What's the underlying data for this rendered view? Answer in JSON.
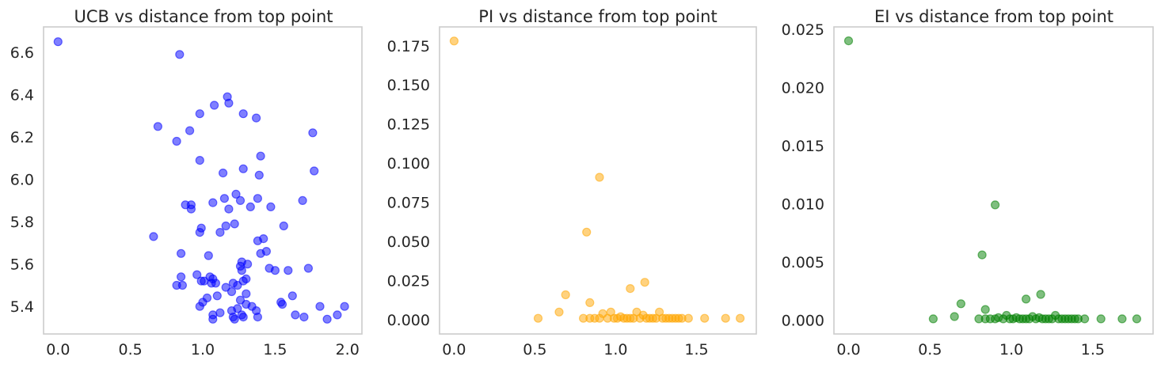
{
  "chart_data": [
    {
      "type": "scatter",
      "title": "UCB vs distance from top point",
      "xlabel": "",
      "ylabel": "",
      "xlim": [
        -0.1,
        2.1
      ],
      "ylim": [
        5.27,
        6.72
      ],
      "xticks": [
        0.0,
        0.5,
        1.0,
        1.5,
        2.0
      ],
      "xtick_labels": [
        "0.0",
        "0.5",
        "1.0",
        "1.5",
        "2.0"
      ],
      "yticks": [
        5.4,
        5.6,
        5.8,
        6.0,
        6.2,
        6.4,
        6.6
      ],
      "ytick_labels": [
        "5.4",
        "5.6",
        "5.8",
        "6.0",
        "6.2",
        "6.4",
        "6.6"
      ],
      "grid": false,
      "color": "#0000ff",
      "points": [
        [
          0.0,
          6.65
        ],
        [
          0.84,
          6.59
        ],
        [
          0.66,
          5.73
        ],
        [
          0.69,
          6.25
        ],
        [
          0.82,
          6.18
        ],
        [
          0.91,
          6.23
        ],
        [
          0.98,
          6.31
        ],
        [
          1.08,
          6.35
        ],
        [
          1.17,
          6.39
        ],
        [
          1.18,
          6.36
        ],
        [
          1.28,
          6.31
        ],
        [
          1.37,
          6.29
        ],
        [
          1.76,
          6.22
        ],
        [
          1.77,
          6.04
        ],
        [
          0.98,
          6.09
        ],
        [
          1.4,
          6.11
        ],
        [
          1.14,
          6.03
        ],
        [
          1.28,
          6.05
        ],
        [
          1.39,
          6.02
        ],
        [
          1.23,
          5.93
        ],
        [
          1.15,
          5.91
        ],
        [
          1.26,
          5.9
        ],
        [
          1.38,
          5.91
        ],
        [
          1.69,
          5.9
        ],
        [
          1.07,
          5.89
        ],
        [
          0.88,
          5.88
        ],
        [
          0.92,
          5.88
        ],
        [
          0.92,
          5.86
        ],
        [
          1.18,
          5.86
        ],
        [
          1.33,
          5.87
        ],
        [
          1.47,
          5.87
        ],
        [
          0.99,
          5.77
        ],
        [
          0.98,
          5.75
        ],
        [
          1.16,
          5.78
        ],
        [
          1.22,
          5.79
        ],
        [
          1.12,
          5.75
        ],
        [
          1.56,
          5.78
        ],
        [
          1.38,
          5.71
        ],
        [
          1.42,
          5.72
        ],
        [
          1.4,
          5.65
        ],
        [
          1.44,
          5.66
        ],
        [
          0.85,
          5.65
        ],
        [
          1.04,
          5.64
        ],
        [
          1.27,
          5.61
        ],
        [
          1.26,
          5.59
        ],
        [
          1.31,
          5.6
        ],
        [
          1.46,
          5.58
        ],
        [
          1.5,
          5.57
        ],
        [
          1.59,
          5.57
        ],
        [
          1.73,
          5.58
        ],
        [
          0.96,
          5.55
        ],
        [
          0.85,
          5.54
        ],
        [
          1.05,
          5.54
        ],
        [
          1.07,
          5.53
        ],
        [
          1.27,
          5.57
        ],
        [
          1.21,
          5.51
        ],
        [
          1.24,
          5.5
        ],
        [
          1.3,
          5.53
        ],
        [
          1.28,
          5.52
        ],
        [
          0.82,
          5.5
        ],
        [
          0.86,
          5.5
        ],
        [
          0.99,
          5.52
        ],
        [
          1.01,
          5.52
        ],
        [
          1.06,
          5.51
        ],
        [
          1.09,
          5.51
        ],
        [
          1.16,
          5.49
        ],
        [
          1.2,
          5.47
        ],
        [
          1.3,
          5.46
        ],
        [
          1.1,
          5.45
        ],
        [
          1.0,
          5.42
        ],
        [
          0.98,
          5.4
        ],
        [
          1.03,
          5.44
        ],
        [
          1.26,
          5.43
        ],
        [
          1.3,
          5.41
        ],
        [
          1.34,
          5.4
        ],
        [
          1.24,
          5.39
        ],
        [
          1.2,
          5.38
        ],
        [
          1.07,
          5.36
        ],
        [
          1.12,
          5.37
        ],
        [
          1.07,
          5.34
        ],
        [
          1.21,
          5.35
        ],
        [
          1.27,
          5.36
        ],
        [
          1.22,
          5.34
        ],
        [
          1.37,
          5.38
        ],
        [
          1.38,
          5.35
        ],
        [
          1.54,
          5.42
        ],
        [
          1.55,
          5.41
        ],
        [
          1.62,
          5.45
        ],
        [
          1.64,
          5.36
        ],
        [
          1.7,
          5.35
        ],
        [
          1.81,
          5.4
        ],
        [
          1.86,
          5.34
        ],
        [
          1.93,
          5.36
        ],
        [
          1.98,
          5.4
        ],
        [
          1.28,
          5.35
        ]
      ]
    },
    {
      "type": "scatter",
      "title": "PI vs distance from top point",
      "xlabel": "",
      "ylabel": "",
      "xlim": [
        -0.09,
        1.87
      ],
      "ylim": [
        -0.009,
        0.187
      ],
      "xticks": [
        0.0,
        0.5,
        1.0,
        1.5
      ],
      "xtick_labels": [
        "0.0",
        "0.5",
        "1.0",
        "1.5"
      ],
      "yticks": [
        0.0,
        0.025,
        0.05,
        0.075,
        0.1,
        0.125,
        0.15,
        0.175
      ],
      "ytick_labels": [
        "0.000",
        "0.025",
        "0.050",
        "0.075",
        "0.100",
        "0.125",
        "0.150",
        "0.175"
      ],
      "grid": false,
      "color": "#ffa500",
      "points": [
        [
          0.0,
          0.178
        ],
        [
          0.9,
          0.091
        ],
        [
          0.82,
          0.056
        ],
        [
          0.69,
          0.016
        ],
        [
          0.84,
          0.011
        ],
        [
          1.09,
          0.02
        ],
        [
          1.18,
          0.024
        ],
        [
          0.65,
          0.005
        ],
        [
          0.52,
          0.001
        ],
        [
          0.8,
          0.001
        ],
        [
          0.84,
          0.001
        ],
        [
          0.87,
          0.001
        ],
        [
          0.9,
          0.001
        ],
        [
          0.92,
          0.004
        ],
        [
          0.95,
          0.001
        ],
        [
          0.97,
          0.005
        ],
        [
          0.99,
          0.001
        ],
        [
          1.01,
          0.001
        ],
        [
          1.03,
          0.002
        ],
        [
          1.05,
          0.001
        ],
        [
          1.07,
          0.001
        ],
        [
          1.09,
          0.001
        ],
        [
          1.11,
          0.001
        ],
        [
          1.13,
          0.005
        ],
        [
          1.15,
          0.001
        ],
        [
          1.17,
          0.003
        ],
        [
          1.19,
          0.001
        ],
        [
          1.21,
          0.001
        ],
        [
          1.23,
          0.001
        ],
        [
          1.25,
          0.001
        ],
        [
          1.27,
          0.005
        ],
        [
          1.29,
          0.001
        ],
        [
          1.31,
          0.001
        ],
        [
          1.33,
          0.001
        ],
        [
          1.35,
          0.001
        ],
        [
          1.37,
          0.001
        ],
        [
          1.39,
          0.001
        ],
        [
          1.41,
          0.001
        ],
        [
          1.45,
          0.001
        ],
        [
          1.55,
          0.001
        ],
        [
          1.68,
          0.001
        ],
        [
          1.77,
          0.001
        ]
      ]
    },
    {
      "type": "scatter",
      "title": "EI vs distance from top point",
      "xlabel": "",
      "ylabel": "",
      "xlim": [
        -0.09,
        1.87
      ],
      "ylim": [
        -0.0012,
        0.0252
      ],
      "xticks": [
        0.0,
        0.5,
        1.0,
        1.5
      ],
      "xtick_labels": [
        "0.0",
        "0.5",
        "1.0",
        "1.5"
      ],
      "yticks": [
        0.0,
        0.005,
        0.01,
        0.015,
        0.02,
        0.025
      ],
      "ytick_labels": [
        "0.000",
        "0.005",
        "0.010",
        "0.015",
        "0.020",
        "0.025"
      ],
      "grid": false,
      "color": "#008000",
      "points": [
        [
          0.0,
          0.024
        ],
        [
          0.9,
          0.0099
        ],
        [
          0.82,
          0.0056
        ],
        [
          0.69,
          0.0014
        ],
        [
          0.84,
          0.0009
        ],
        [
          1.09,
          0.0018
        ],
        [
          1.18,
          0.0022
        ],
        [
          0.65,
          0.0003
        ],
        [
          0.52,
          0.0001
        ],
        [
          0.8,
          0.0001
        ],
        [
          0.84,
          0.0001
        ],
        [
          0.87,
          0.0001
        ],
        [
          0.9,
          0.0001
        ],
        [
          0.92,
          0.0002
        ],
        [
          0.95,
          0.0001
        ],
        [
          0.97,
          0.0004
        ],
        [
          0.99,
          0.0001
        ],
        [
          1.01,
          0.0001
        ],
        [
          1.03,
          0.0002
        ],
        [
          1.05,
          0.0001
        ],
        [
          1.07,
          0.0001
        ],
        [
          1.09,
          0.0001
        ],
        [
          1.11,
          0.0001
        ],
        [
          1.13,
          0.0003
        ],
        [
          1.15,
          0.0001
        ],
        [
          1.17,
          0.0002
        ],
        [
          1.19,
          0.0001
        ],
        [
          1.21,
          0.0001
        ],
        [
          1.23,
          0.0001
        ],
        [
          1.25,
          0.0001
        ],
        [
          1.27,
          0.0004
        ],
        [
          1.29,
          0.0001
        ],
        [
          1.31,
          0.0001
        ],
        [
          1.33,
          0.0001
        ],
        [
          1.35,
          0.0001
        ],
        [
          1.37,
          0.0001
        ],
        [
          1.39,
          0.0001
        ],
        [
          1.41,
          0.0001
        ],
        [
          1.45,
          0.0001
        ],
        [
          1.55,
          0.0001
        ],
        [
          1.68,
          0.0001
        ],
        [
          1.77,
          0.0001
        ]
      ]
    }
  ]
}
